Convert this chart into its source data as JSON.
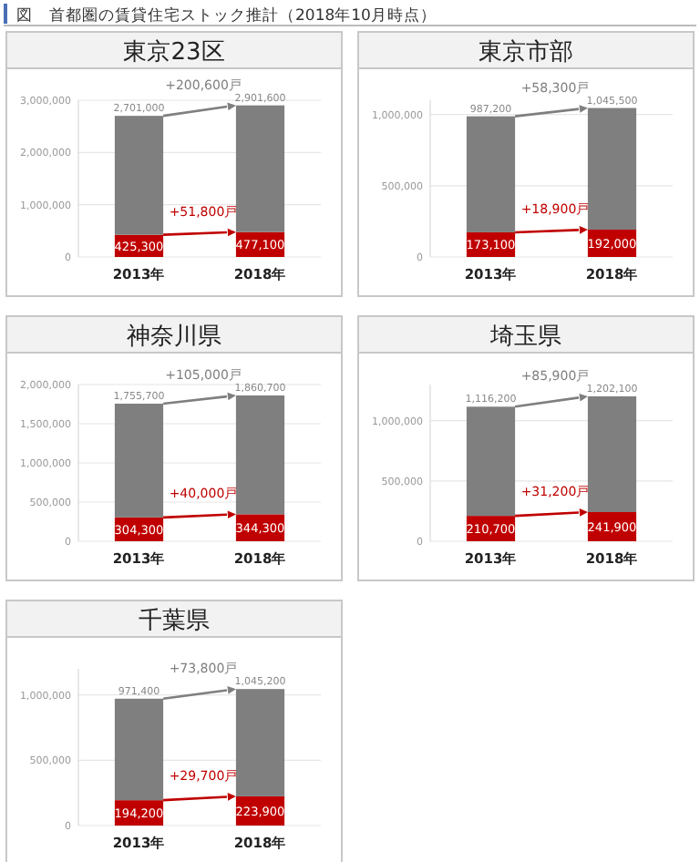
{
  "chart_data": [
    {
      "type": "other",
      "title": "図　首都圏の賃貸住宅ストック推計（2018年10月時点）"
    },
    {
      "type": "bar",
      "title": "東京23区",
      "categories": [
        "2013年",
        "2018年"
      ],
      "stacked": true,
      "grid": "y",
      "ylim": [
        0,
        3000000
      ],
      "yticks": [
        {
          "value": 0,
          "label": "0"
        },
        {
          "value": 1000000,
          "label": "1,000,000"
        },
        {
          "value": 2000000,
          "label": "2,000,000"
        },
        {
          "value": 3000000,
          "label": "3,000,000"
        }
      ],
      "series": [
        {
          "color": "#c00000",
          "values": [
            425300,
            477100
          ],
          "value_labels": [
            "425,300",
            "477,100"
          ]
        },
        {
          "color": "#7f7f7f",
          "values": [
            2275700,
            2424500
          ]
        }
      ],
      "totals": [
        "2,701,000",
        "2,901,600"
      ],
      "annotations": [
        "+51,800戸",
        "+200,600戸"
      ]
    },
    {
      "type": "bar",
      "title": "東京市部",
      "categories": [
        "2013年",
        "2018年"
      ],
      "stacked": true,
      "grid": "y",
      "ylim": [
        0,
        1100000
      ],
      "yticks": [
        {
          "value": 0,
          "label": "0"
        },
        {
          "value": 500000,
          "label": "500,000"
        },
        {
          "value": 1000000,
          "label": "1,000,000"
        }
      ],
      "series": [
        {
          "color": "#c00000",
          "values": [
            173100,
            192000
          ],
          "value_labels": [
            "173,100",
            "192,000"
          ]
        },
        {
          "color": "#7f7f7f",
          "values": [
            814100,
            853500
          ]
        }
      ],
      "totals": [
        "987,200",
        "1,045,500"
      ],
      "annotations": [
        "+18,900戸",
        "+58,300戸"
      ]
    },
    {
      "type": "bar",
      "title": "神奈川県",
      "categories": [
        "2013年",
        "2018年"
      ],
      "stacked": true,
      "grid": "y",
      "ylim": [
        0,
        2000000
      ],
      "yticks": [
        {
          "value": 0,
          "label": "0"
        },
        {
          "value": 500000,
          "label": "500,000"
        },
        {
          "value": 1000000,
          "label": "1,000,000"
        },
        {
          "value": 1500000,
          "label": "1,500,000"
        },
        {
          "value": 2000000,
          "label": "2,000,000"
        }
      ],
      "series": [
        {
          "color": "#c00000",
          "values": [
            304300,
            344300
          ],
          "value_labels": [
            "304,300",
            "344,300"
          ]
        },
        {
          "color": "#7f7f7f",
          "values": [
            1451400,
            1516400
          ]
        }
      ],
      "totals": [
        "1,755,700",
        "1,860,700"
      ],
      "annotations": [
        "+40,000戸",
        "+105,000戸"
      ]
    },
    {
      "type": "bar",
      "title": "埼玉県",
      "categories": [
        "2013年",
        "2018年"
      ],
      "stacked": true,
      "grid": "y",
      "ylim": [
        0,
        1300000
      ],
      "yticks": [
        {
          "value": 0,
          "label": "0"
        },
        {
          "value": 500000,
          "label": "500,000"
        },
        {
          "value": 1000000,
          "label": "1,000,000"
        }
      ],
      "series": [
        {
          "color": "#c00000",
          "values": [
            210700,
            241900
          ],
          "value_labels": [
            "210,700",
            "241,900"
          ]
        },
        {
          "color": "#7f7f7f",
          "values": [
            905500,
            960200
          ]
        }
      ],
      "totals": [
        "1,116,200",
        "1,202,100"
      ],
      "annotations": [
        "+31,200戸",
        "+85,900戸"
      ]
    },
    {
      "type": "bar",
      "title": "千葉県",
      "categories": [
        "2013年",
        "2018年"
      ],
      "stacked": true,
      "grid": "y",
      "ylim": [
        0,
        1200000
      ],
      "yticks": [
        {
          "value": 0,
          "label": "0"
        },
        {
          "value": 500000,
          "label": "500,000"
        },
        {
          "value": 1000000,
          "label": "1,000,000"
        }
      ],
      "series": [
        {
          "color": "#c00000",
          "values": [
            194200,
            223900
          ],
          "value_labels": [
            "194,200",
            "223,900"
          ]
        },
        {
          "color": "#7f7f7f",
          "values": [
            777200,
            821300
          ]
        }
      ],
      "totals": [
        "971,400",
        "1,045,200"
      ],
      "annotations": [
        "+29,700戸",
        "+73,800戸"
      ]
    }
  ]
}
